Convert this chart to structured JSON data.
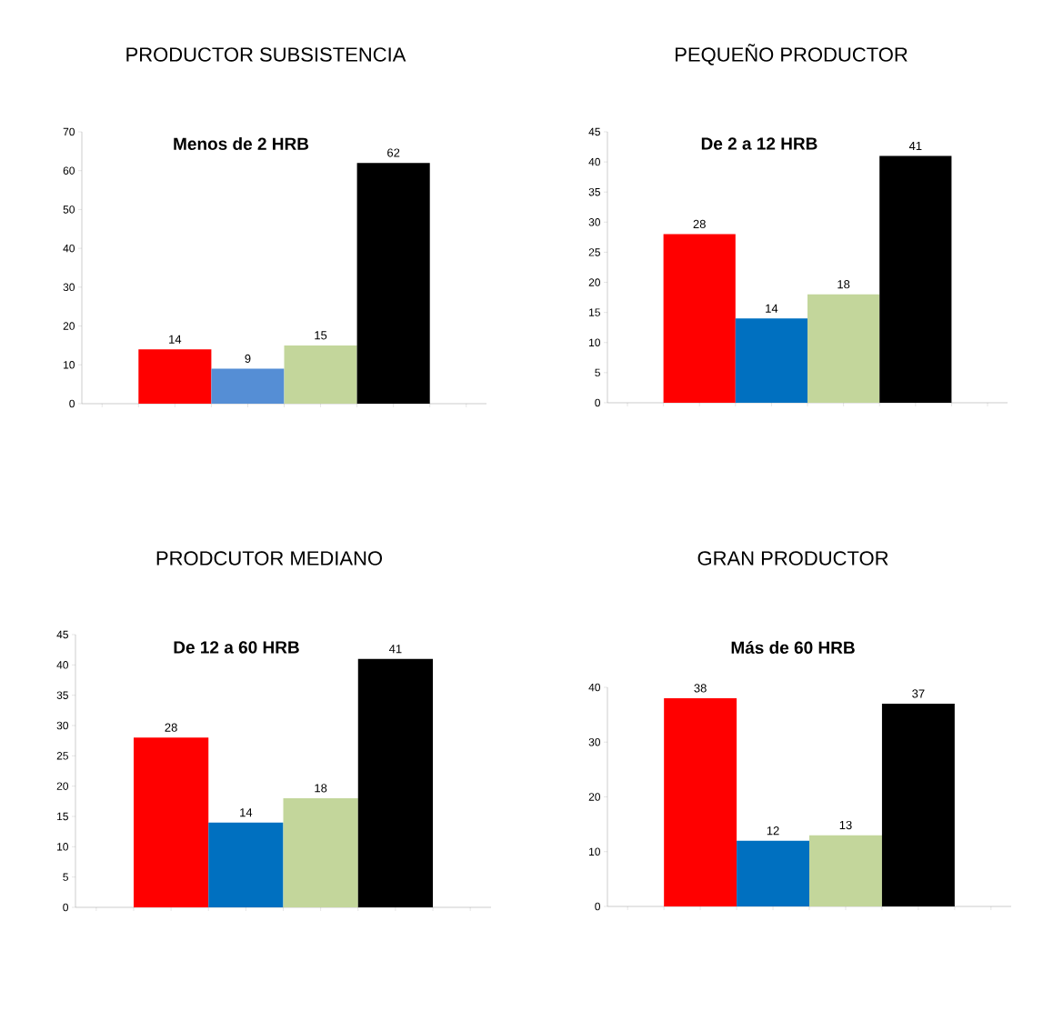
{
  "chart_data": [
    {
      "type": "bar",
      "title": "PRODUCTOR SUBSISTENCIA",
      "subtitle": "Menos de 2 HRB",
      "categories": [
        null,
        null,
        null,
        null
      ],
      "values": [
        14,
        9,
        15,
        62
      ],
      "colors": [
        "#ff0000",
        "#558ed5",
        "#c3d69b",
        "#000000"
      ],
      "ylim": [
        0,
        70
      ],
      "yticks": [
        0,
        10,
        20,
        30,
        40,
        50,
        60,
        70
      ],
      "data_labels": true
    },
    {
      "type": "bar",
      "title": "PEQUEÑO PRODUCTOR",
      "subtitle": "De 2 a 12 HRB",
      "categories": [
        null,
        null,
        null,
        null
      ],
      "values": [
        28,
        14,
        18,
        41
      ],
      "colors": [
        "#ff0000",
        "#0070c0",
        "#c3d69b",
        "#000000"
      ],
      "ylim": [
        0,
        45
      ],
      "yticks": [
        0,
        5,
        10,
        15,
        20,
        25,
        30,
        35,
        40,
        45
      ],
      "data_labels": true
    },
    {
      "type": "bar",
      "title": "PRODCUTOR MEDIANO",
      "subtitle": "De 12 a 60 HRB",
      "categories": [
        null,
        null,
        null,
        null
      ],
      "values": [
        28,
        14,
        18,
        41
      ],
      "colors": [
        "#ff0000",
        "#0070c0",
        "#c3d69b",
        "#000000"
      ],
      "ylim": [
        0,
        45
      ],
      "yticks": [
        0,
        5,
        10,
        15,
        20,
        25,
        30,
        35,
        40,
        45
      ],
      "data_labels": true
    },
    {
      "type": "bar",
      "title": "GRAN PRODUCTOR",
      "subtitle": "Más de 60 HRB",
      "categories": [
        null,
        null,
        null,
        null
      ],
      "values": [
        38,
        12,
        13,
        37
      ],
      "colors": [
        "#ff0000",
        "#0070c0",
        "#c3d69b",
        "#000000"
      ],
      "ylim": [
        0,
        40
      ],
      "yticks": [
        0,
        10,
        20,
        30,
        40
      ],
      "data_labels": true
    }
  ]
}
